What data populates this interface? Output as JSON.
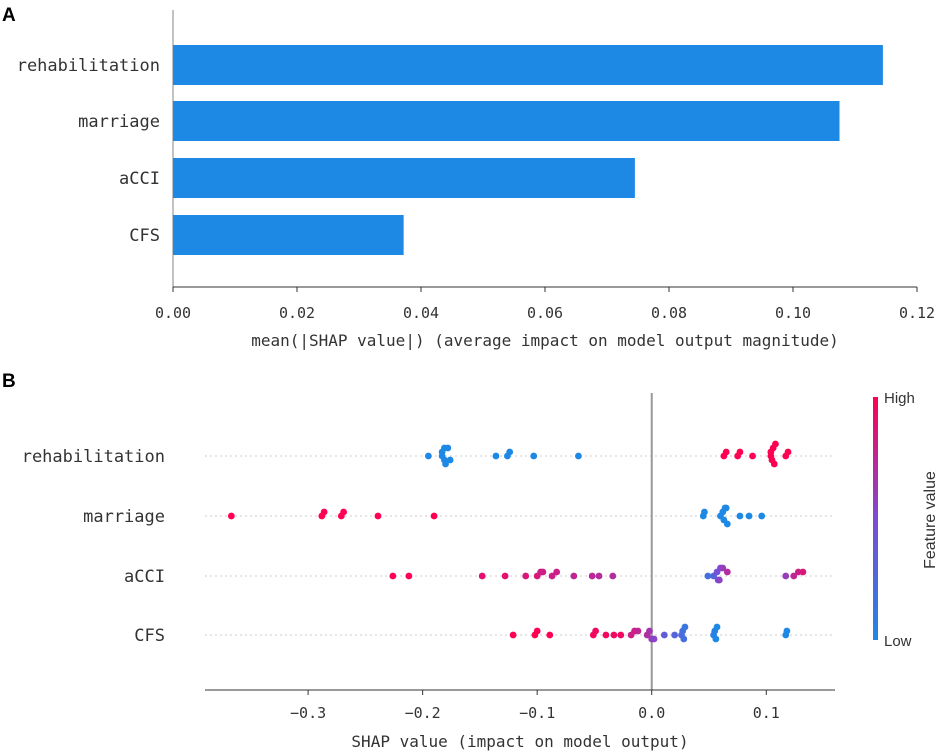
{
  "chart_data": [
    {
      "panel": "A",
      "type": "bar",
      "orientation": "horizontal",
      "categories": [
        "rehabilitation",
        "marriage",
        "aCCI",
        "CFS"
      ],
      "values": [
        0.1145,
        0.1075,
        0.0745,
        0.0372
      ],
      "xlabel": "mean(|SHAP value|) (average impact on model output magnitude)",
      "xlim": [
        0,
        0.12
      ],
      "xticks": [
        0,
        0.02,
        0.04,
        0.06,
        0.08,
        0.1,
        0.12
      ],
      "xtick_labels": [
        "0.00",
        "0.02",
        "0.04",
        "0.06",
        "0.08",
        "0.10",
        "0.12"
      ],
      "bar_color": "#1e88e5"
    },
    {
      "panel": "B",
      "type": "scatter",
      "subtype": "beeswarm",
      "xlabel": "SHAP value (impact on model output)",
      "xlim": [
        -0.39,
        0.16
      ],
      "xticks": [
        -0.3,
        -0.2,
        -0.1,
        0.0,
        0.1
      ],
      "xtick_labels": [
        "−0.3",
        "−0.2",
        "−0.1",
        "0.0",
        "0.1"
      ],
      "colorbar": {
        "label": "Feature value",
        "high": "High",
        "low": "Low",
        "high_color": "#ff0052",
        "low_color": "#1e88e5"
      },
      "series": [
        {
          "name": "rehabilitation",
          "points": [
            {
              "x": -0.195,
              "f": 0
            },
            {
              "x": -0.183,
              "f": 0
            },
            {
              "x": -0.183,
              "f": 0
            },
            {
              "x": -0.181,
              "f": 0
            },
            {
              "x": -0.181,
              "f": 0
            },
            {
              "x": -0.18,
              "f": 0
            },
            {
              "x": -0.178,
              "f": 0
            },
            {
              "x": -0.176,
              "f": 0
            },
            {
              "x": -0.136,
              "f": 0
            },
            {
              "x": -0.126,
              "f": 0
            },
            {
              "x": -0.124,
              "f": 0
            },
            {
              "x": -0.103,
              "f": 0
            },
            {
              "x": -0.064,
              "f": 0
            },
            {
              "x": 0.063,
              "f": 1
            },
            {
              "x": 0.065,
              "f": 1
            },
            {
              "x": 0.075,
              "f": 1
            },
            {
              "x": 0.077,
              "f": 1
            },
            {
              "x": 0.088,
              "f": 1
            },
            {
              "x": 0.104,
              "f": 1
            },
            {
              "x": 0.104,
              "f": 1
            },
            {
              "x": 0.105,
              "f": 1
            },
            {
              "x": 0.106,
              "f": 1
            },
            {
              "x": 0.107,
              "f": 1
            },
            {
              "x": 0.108,
              "f": 1
            },
            {
              "x": 0.117,
              "f": 1
            },
            {
              "x": 0.119,
              "f": 1
            }
          ]
        },
        {
          "name": "marriage",
          "points": [
            {
              "x": -0.367,
              "f": 1
            },
            {
              "x": -0.288,
              "f": 1
            },
            {
              "x": -0.286,
              "f": 1
            },
            {
              "x": -0.271,
              "f": 1
            },
            {
              "x": -0.269,
              "f": 1
            },
            {
              "x": -0.239,
              "f": 1
            },
            {
              "x": -0.19,
              "f": 1
            },
            {
              "x": 0.045,
              "f": 0
            },
            {
              "x": 0.046,
              "f": 0
            },
            {
              "x": 0.06,
              "f": 0
            },
            {
              "x": 0.062,
              "f": 0
            },
            {
              "x": 0.063,
              "f": 0
            },
            {
              "x": 0.064,
              "f": 0
            },
            {
              "x": 0.065,
              "f": 0
            },
            {
              "x": 0.066,
              "f": 0
            },
            {
              "x": 0.077,
              "f": 0
            },
            {
              "x": 0.085,
              "f": 0
            },
            {
              "x": 0.096,
              "f": 0
            }
          ]
        },
        {
          "name": "aCCI",
          "points": [
            {
              "x": -0.226,
              "f": 1
            },
            {
              "x": -0.212,
              "f": 1
            },
            {
              "x": -0.148,
              "f": 0.9
            },
            {
              "x": -0.128,
              "f": 0.9
            },
            {
              "x": -0.11,
              "f": 0.85
            },
            {
              "x": -0.1,
              "f": 0.85
            },
            {
              "x": -0.097,
              "f": 0.8
            },
            {
              "x": -0.095,
              "f": 0.8
            },
            {
              "x": -0.087,
              "f": 0.8
            },
            {
              "x": -0.083,
              "f": 0.8
            },
            {
              "x": -0.068,
              "f": 0.75
            },
            {
              "x": -0.052,
              "f": 0.75
            },
            {
              "x": -0.046,
              "f": 0.7
            },
            {
              "x": -0.034,
              "f": 0.7
            },
            {
              "x": 0.049,
              "f": 0.2
            },
            {
              "x": 0.054,
              "f": 0.3
            },
            {
              "x": 0.057,
              "f": 0.45
            },
            {
              "x": 0.058,
              "f": 0.5
            },
            {
              "x": 0.059,
              "f": 0.55
            },
            {
              "x": 0.06,
              "f": 0.5
            },
            {
              "x": 0.062,
              "f": 0.6
            },
            {
              "x": 0.066,
              "f": 0.7
            },
            {
              "x": 0.117,
              "f": 0.6
            },
            {
              "x": 0.124,
              "f": 0.75
            },
            {
              "x": 0.128,
              "f": 0.8
            },
            {
              "x": 0.132,
              "f": 0.85
            }
          ]
        },
        {
          "name": "CFS",
          "points": [
            {
              "x": -0.121,
              "f": 1
            },
            {
              "x": -0.102,
              "f": 1
            },
            {
              "x": -0.1,
              "f": 1
            },
            {
              "x": -0.089,
              "f": 1
            },
            {
              "x": -0.051,
              "f": 0.95
            },
            {
              "x": -0.049,
              "f": 0.95
            },
            {
              "x": -0.04,
              "f": 0.95
            },
            {
              "x": -0.033,
              "f": 0.95
            },
            {
              "x": -0.027,
              "f": 0.95
            },
            {
              "x": -0.018,
              "f": 0.8
            },
            {
              "x": -0.015,
              "f": 0.8
            },
            {
              "x": -0.012,
              "f": 0.75
            },
            {
              "x": -0.004,
              "f": 0.7
            },
            {
              "x": -0.002,
              "f": 0.65
            },
            {
              "x": 0.0,
              "f": 0.6
            },
            {
              "x": 0.002,
              "f": 0.55
            },
            {
              "x": 0.011,
              "f": 0.35
            },
            {
              "x": 0.02,
              "f": 0.3
            },
            {
              "x": 0.026,
              "f": 0.25
            },
            {
              "x": 0.027,
              "f": 0.2
            },
            {
              "x": 0.028,
              "f": 0.2
            },
            {
              "x": 0.029,
              "f": 0.15
            },
            {
              "x": 0.054,
              "f": 0.05
            },
            {
              "x": 0.055,
              "f": 0.05
            },
            {
              "x": 0.056,
              "f": 0.0
            },
            {
              "x": 0.057,
              "f": 0.0
            },
            {
              "x": 0.117,
              "f": 0.0
            },
            {
              "x": 0.118,
              "f": 0.0
            }
          ]
        }
      ]
    }
  ],
  "panel_labels": {
    "a": "A",
    "b": "B"
  }
}
